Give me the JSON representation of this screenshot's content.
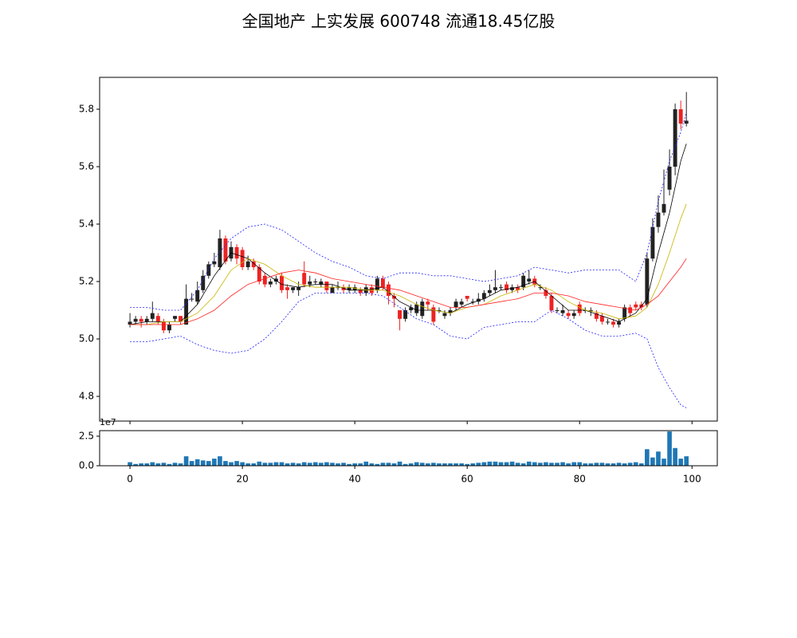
{
  "chart_data": [
    {
      "type": "candlestick",
      "title": "全国地产 上实发展 600748 流通18.45亿股",
      "x": [
        0,
        1,
        2,
        3,
        4,
        5,
        6,
        7,
        8,
        9,
        10,
        11,
        12,
        13,
        14,
        15,
        16,
        17,
        18,
        19,
        20,
        21,
        22,
        23,
        24,
        25,
        26,
        27,
        28,
        29,
        30,
        31,
        32,
        33,
        34,
        35,
        36,
        37,
        38,
        39,
        40,
        41,
        42,
        43,
        44,
        45,
        46,
        47,
        48,
        49,
        50,
        51,
        52,
        53,
        54,
        55,
        56,
        57,
        58,
        59,
        60,
        61,
        62,
        63,
        64,
        65,
        66,
        67,
        68,
        69,
        70,
        71,
        72,
        73,
        74,
        75,
        76,
        77,
        78,
        79,
        80,
        81,
        82,
        83,
        84,
        85,
        86,
        87,
        88,
        89,
        90,
        91,
        92,
        93,
        94,
        95,
        96,
        97,
        98,
        99
      ],
      "open": [
        5.05,
        5.06,
        5.07,
        5.06,
        5.07,
        5.08,
        5.06,
        5.03,
        5.07,
        5.08,
        5.05,
        5.14,
        5.13,
        5.17,
        5.22,
        5.26,
        5.25,
        5.35,
        5.28,
        5.32,
        5.31,
        5.25,
        5.27,
        5.25,
        5.22,
        5.19,
        5.2,
        5.22,
        5.18,
        5.17,
        5.17,
        5.23,
        5.19,
        5.2,
        5.19,
        5.2,
        5.16,
        5.18,
        5.18,
        5.17,
        5.17,
        5.17,
        5.16,
        5.18,
        5.17,
        5.21,
        5.19,
        5.15,
        5.1,
        5.07,
        5.1,
        5.09,
        5.08,
        5.13,
        5.11,
        5.1,
        5.08,
        5.09,
        5.11,
        5.12,
        5.15,
        5.13,
        5.13,
        5.14,
        5.16,
        5.17,
        5.18,
        5.19,
        5.17,
        5.18,
        5.18,
        5.2,
        5.21,
        5.18,
        5.17,
        5.15,
        5.1,
        5.09,
        5.09,
        5.08,
        5.12,
        5.1,
        5.1,
        5.09,
        5.08,
        5.06,
        5.06,
        5.05,
        5.07,
        5.11,
        5.12,
        5.12,
        5.12,
        5.28,
        5.39,
        5.44,
        5.52,
        5.6,
        5.8,
        5.75
      ],
      "close": [
        5.06,
        5.07,
        5.06,
        5.07,
        5.09,
        5.06,
        5.03,
        5.05,
        5.08,
        5.06,
        5.14,
        5.14,
        5.17,
        5.22,
        5.26,
        5.27,
        5.35,
        5.27,
        5.32,
        5.28,
        5.25,
        5.27,
        5.25,
        5.2,
        5.19,
        5.2,
        5.21,
        5.17,
        5.17,
        5.18,
        5.18,
        5.19,
        5.2,
        5.2,
        5.2,
        5.17,
        5.18,
        5.18,
        5.17,
        5.18,
        5.18,
        5.16,
        5.18,
        5.16,
        5.21,
        5.18,
        5.15,
        5.14,
        5.07,
        5.1,
        5.11,
        5.12,
        5.13,
        5.12,
        5.06,
        5.1,
        5.09,
        5.1,
        5.13,
        5.13,
        5.14,
        5.13,
        5.14,
        5.16,
        5.17,
        5.18,
        5.18,
        5.17,
        5.18,
        5.17,
        5.22,
        5.21,
        5.19,
        5.18,
        5.15,
        5.1,
        5.1,
        5.1,
        5.08,
        5.09,
        5.09,
        5.1,
        5.1,
        5.07,
        5.06,
        5.06,
        5.05,
        5.06,
        5.11,
        5.09,
        5.11,
        5.11,
        5.28,
        5.39,
        5.44,
        5.47,
        5.6,
        5.8,
        5.75,
        5.76
      ],
      "high": [
        5.09,
        5.08,
        5.08,
        5.08,
        5.13,
        5.09,
        5.07,
        5.06,
        5.08,
        5.08,
        5.19,
        5.16,
        5.2,
        5.24,
        5.27,
        5.3,
        5.38,
        5.36,
        5.34,
        5.33,
        5.32,
        5.29,
        5.28,
        5.26,
        5.23,
        5.21,
        5.22,
        5.23,
        5.19,
        5.18,
        5.2,
        5.27,
        5.22,
        5.21,
        5.21,
        5.2,
        5.19,
        5.2,
        5.19,
        5.19,
        5.19,
        5.18,
        5.19,
        5.19,
        5.22,
        5.22,
        5.2,
        5.16,
        5.1,
        5.11,
        5.12,
        5.13,
        5.14,
        5.14,
        5.12,
        5.11,
        5.1,
        5.11,
        5.14,
        5.14,
        5.15,
        5.14,
        5.16,
        5.17,
        5.19,
        5.24,
        5.19,
        5.2,
        5.19,
        5.19,
        5.23,
        5.24,
        5.22,
        5.19,
        5.18,
        5.16,
        5.11,
        5.12,
        5.1,
        5.1,
        5.13,
        5.11,
        5.11,
        5.1,
        5.09,
        5.07,
        5.07,
        5.07,
        5.12,
        5.12,
        5.13,
        5.13,
        5.3,
        5.42,
        5.5,
        5.59,
        5.66,
        5.82,
        5.83,
        5.86
      ],
      "low": [
        5.04,
        5.05,
        5.04,
        5.05,
        5.06,
        5.05,
        5.02,
        5.02,
        5.06,
        5.05,
        5.05,
        5.13,
        5.12,
        5.16,
        5.21,
        5.25,
        5.24,
        5.26,
        5.27,
        5.26,
        5.24,
        5.24,
        5.24,
        5.19,
        5.18,
        5.18,
        5.19,
        5.16,
        5.14,
        5.16,
        5.15,
        5.18,
        5.18,
        5.19,
        5.18,
        5.16,
        5.16,
        5.17,
        5.16,
        5.16,
        5.16,
        5.15,
        5.15,
        5.15,
        5.16,
        5.17,
        5.12,
        5.11,
        5.03,
        5.06,
        5.09,
        5.08,
        5.07,
        5.1,
        5.05,
        5.09,
        5.07,
        5.08,
        5.1,
        5.11,
        5.13,
        5.12,
        5.12,
        5.13,
        5.15,
        5.16,
        5.17,
        5.16,
        5.16,
        5.16,
        5.17,
        5.19,
        5.18,
        5.17,
        5.14,
        5.09,
        5.09,
        5.08,
        5.07,
        5.07,
        5.08,
        5.09,
        5.08,
        5.06,
        5.05,
        5.05,
        5.04,
        5.04,
        5.06,
        5.08,
        5.1,
        5.1,
        5.11,
        5.27,
        5.37,
        5.43,
        5.5,
        5.57,
        5.73,
        5.74
      ],
      "up_color": "#222222",
      "down_color": "#ee2222",
      "series": [
        {
          "color": "#000000",
          "dash": false,
          "x": [
            0,
            3,
            6,
            9,
            12,
            15,
            18,
            21,
            24,
            27,
            30,
            33,
            36,
            39,
            42,
            45,
            48,
            51,
            54,
            57,
            60,
            63,
            66,
            69,
            72,
            75,
            78,
            81,
            84,
            87,
            90,
            92,
            94,
            96,
            98,
            99
          ],
          "values": [
            5.05,
            5.06,
            5.06,
            5.06,
            5.12,
            5.22,
            5.3,
            5.28,
            5.23,
            5.19,
            5.18,
            5.19,
            5.19,
            5.17,
            5.17,
            5.18,
            5.13,
            5.1,
            5.1,
            5.09,
            5.12,
            5.14,
            5.17,
            5.18,
            5.2,
            5.15,
            5.1,
            5.1,
            5.08,
            5.06,
            5.09,
            5.14,
            5.3,
            5.44,
            5.62,
            5.68
          ]
        },
        {
          "color": "#c8b400",
          "dash": false,
          "x": [
            0,
            3,
            6,
            9,
            12,
            15,
            18,
            21,
            24,
            27,
            30,
            33,
            36,
            39,
            42,
            45,
            48,
            51,
            54,
            57,
            60,
            63,
            66,
            69,
            72,
            75,
            78,
            81,
            84,
            87,
            90,
            92,
            94,
            96,
            98,
            99
          ],
          "values": [
            5.05,
            5.05,
            5.06,
            5.06,
            5.09,
            5.15,
            5.24,
            5.28,
            5.26,
            5.22,
            5.19,
            5.18,
            5.18,
            5.18,
            5.17,
            5.17,
            5.15,
            5.12,
            5.1,
            5.09,
            5.11,
            5.12,
            5.15,
            5.17,
            5.19,
            5.17,
            5.13,
            5.1,
            5.09,
            5.07,
            5.08,
            5.11,
            5.19,
            5.3,
            5.42,
            5.47
          ]
        },
        {
          "color": "#ff2020",
          "dash": false,
          "x": [
            0,
            3,
            6,
            9,
            12,
            15,
            18,
            21,
            24,
            27,
            30,
            33,
            36,
            39,
            42,
            45,
            48,
            51,
            54,
            57,
            60,
            63,
            66,
            69,
            72,
            75,
            78,
            81,
            84,
            87,
            90,
            92,
            94,
            96,
            98,
            99
          ],
          "values": [
            5.05,
            5.05,
            5.05,
            5.05,
            5.07,
            5.1,
            5.15,
            5.19,
            5.21,
            5.23,
            5.24,
            5.23,
            5.21,
            5.2,
            5.19,
            5.18,
            5.17,
            5.15,
            5.13,
            5.11,
            5.11,
            5.12,
            5.13,
            5.14,
            5.16,
            5.16,
            5.15,
            5.13,
            5.12,
            5.11,
            5.1,
            5.12,
            5.15,
            5.2,
            5.25,
            5.28
          ]
        },
        {
          "color": "#2020ff",
          "dash": true,
          "x": [
            0,
            3,
            6,
            9,
            12,
            15,
            18,
            21,
            24,
            27,
            30,
            33,
            36,
            39,
            42,
            45,
            48,
            51,
            54,
            57,
            60,
            63,
            66,
            69,
            72,
            75,
            78,
            81,
            84,
            87,
            90,
            92,
            94,
            96,
            98,
            99
          ],
          "values": [
            5.11,
            5.11,
            5.1,
            5.1,
            5.17,
            5.28,
            5.35,
            5.39,
            5.4,
            5.38,
            5.34,
            5.3,
            5.27,
            5.25,
            5.22,
            5.21,
            5.23,
            5.23,
            5.22,
            5.22,
            5.21,
            5.2,
            5.21,
            5.22,
            5.25,
            5.24,
            5.23,
            5.24,
            5.24,
            5.24,
            5.2,
            5.3,
            5.48,
            5.62,
            5.72,
            5.79
          ]
        },
        {
          "color": "#2020ff",
          "dash": true,
          "x": [
            0,
            3,
            6,
            9,
            12,
            15,
            18,
            21,
            24,
            27,
            30,
            33,
            36,
            39,
            42,
            45,
            48,
            51,
            54,
            57,
            60,
            63,
            66,
            69,
            72,
            75,
            78,
            81,
            84,
            87,
            90,
            92,
            94,
            96,
            98,
            99
          ],
          "values": [
            4.99,
            4.99,
            5.0,
            5.01,
            4.98,
            4.96,
            4.95,
            4.96,
            5.0,
            5.06,
            5.13,
            5.16,
            5.16,
            5.16,
            5.16,
            5.15,
            5.11,
            5.07,
            5.05,
            5.01,
            5.0,
            5.04,
            5.05,
            5.06,
            5.06,
            5.1,
            5.07,
            5.03,
            5.01,
            5.01,
            5.02,
            5.0,
            4.9,
            4.83,
            4.77,
            4.76
          ]
        }
      ],
      "xlim": [
        -5.4,
        104.5
      ],
      "xticks": [
        0,
        20,
        40,
        60,
        80,
        100
      ],
      "ylim": [
        4.714,
        5.911
      ],
      "yticks": [
        4.8,
        {
          "value": 5.0,
          "label": "5.0"
        },
        5.2,
        5.4,
        5.6,
        5.8
      ]
    },
    {
      "type": "bar",
      "offset_label": "1e7",
      "color": "#1f77b4",
      "x": [
        0,
        1,
        2,
        3,
        4,
        5,
        6,
        7,
        8,
        9,
        10,
        11,
        12,
        13,
        14,
        15,
        16,
        17,
        18,
        19,
        20,
        21,
        22,
        23,
        24,
        25,
        26,
        27,
        28,
        29,
        30,
        31,
        32,
        33,
        34,
        35,
        36,
        37,
        38,
        39,
        40,
        41,
        42,
        43,
        44,
        45,
        46,
        47,
        48,
        49,
        50,
        51,
        52,
        53,
        54,
        55,
        56,
        57,
        58,
        59,
        60,
        61,
        62,
        63,
        64,
        65,
        66,
        67,
        68,
        69,
        70,
        71,
        72,
        73,
        74,
        75,
        76,
        77,
        78,
        79,
        80,
        81,
        82,
        83,
        84,
        85,
        86,
        87,
        88,
        89,
        90,
        91,
        92,
        93,
        94,
        95,
        96,
        97,
        98,
        99
      ],
      "values": [
        0.3,
        0.15,
        0.2,
        0.2,
        0.3,
        0.2,
        0.25,
        0.15,
        0.25,
        0.2,
        0.8,
        0.4,
        0.55,
        0.45,
        0.4,
        0.6,
        0.8,
        0.4,
        0.3,
        0.4,
        0.3,
        0.2,
        0.2,
        0.35,
        0.25,
        0.25,
        0.3,
        0.3,
        0.2,
        0.25,
        0.2,
        0.3,
        0.25,
        0.3,
        0.25,
        0.3,
        0.25,
        0.2,
        0.25,
        0.15,
        0.2,
        0.2,
        0.35,
        0.2,
        0.15,
        0.25,
        0.25,
        0.2,
        0.35,
        0.15,
        0.2,
        0.3,
        0.25,
        0.2,
        0.25,
        0.2,
        0.2,
        0.2,
        0.2,
        0.2,
        0.15,
        0.2,
        0.25,
        0.3,
        0.35,
        0.35,
        0.3,
        0.3,
        0.35,
        0.25,
        0.2,
        0.35,
        0.3,
        0.25,
        0.3,
        0.25,
        0.25,
        0.3,
        0.2,
        0.3,
        0.3,
        0.2,
        0.2,
        0.25,
        0.25,
        0.2,
        0.2,
        0.25,
        0.2,
        0.25,
        0.3,
        0.2,
        1.4,
        0.7,
        1.2,
        0.6,
        2.9,
        1.5,
        0.6,
        0.8
      ],
      "xlim": [
        -5.4,
        104.5
      ],
      "xticks": [
        0,
        20,
        40,
        60,
        80,
        100
      ],
      "ylim": [
        0,
        2.97
      ],
      "yticks": [
        {
          "value": 0,
          "label": "0.0"
        },
        {
          "value": 2.5,
          "label": "2.5"
        }
      ]
    }
  ]
}
